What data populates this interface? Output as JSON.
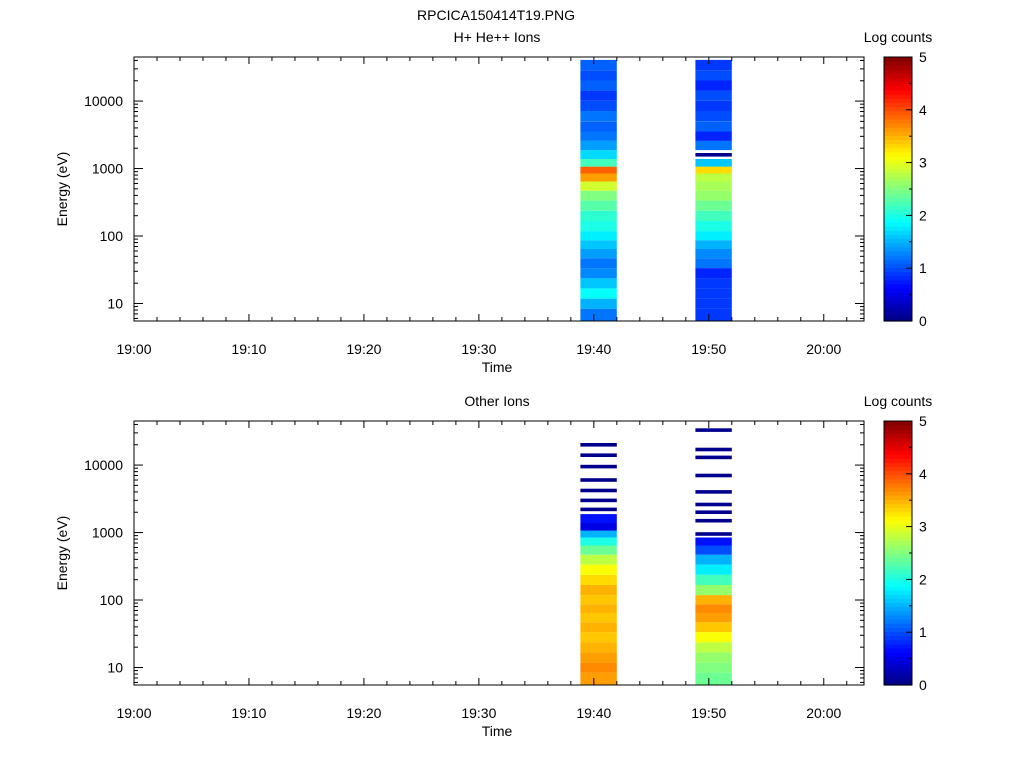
{
  "figure_title": "RPCICA150414T19.PNG",
  "chart_data": [
    {
      "type": "heatmap",
      "title": "H+ He++ Ions",
      "xlabel": "Time",
      "ylabel": "Energy (eV)",
      "x_ticks": [
        "19:00",
        "19:10",
        "19:20",
        "19:30",
        "19:40",
        "19:50",
        "20:00"
      ],
      "y_scale": "log",
      "ylim": [
        5.5,
        45000
      ],
      "y_ticks": [
        "10",
        "100",
        "1000",
        "10000"
      ],
      "colorbar": {
        "label": "Log counts",
        "range": [
          0,
          5
        ],
        "ticks": [
          "0",
          "1",
          "2",
          "3",
          "4",
          "5"
        ],
        "colormap": "jet"
      },
      "grid": false,
      "columns": [
        {
          "time_start": "19:38:50",
          "time_end": "19:42:00",
          "bins": [
            {
              "energy": 7,
              "value": 1.2
            },
            {
              "energy": 10,
              "value": 1.5
            },
            {
              "energy": 14,
              "value": 1.9
            },
            {
              "energy": 20,
              "value": 1.6
            },
            {
              "energy": 28,
              "value": 1.3
            },
            {
              "energy": 40,
              "value": 1.2
            },
            {
              "energy": 55,
              "value": 1.4
            },
            {
              "energy": 75,
              "value": 1.6
            },
            {
              "energy": 100,
              "value": 1.8
            },
            {
              "energy": 140,
              "value": 2.0
            },
            {
              "energy": 200,
              "value": 2.1
            },
            {
              "energy": 280,
              "value": 2.3
            },
            {
              "energy": 400,
              "value": 2.5
            },
            {
              "energy": 550,
              "value": 2.9
            },
            {
              "energy": 750,
              "value": 3.6
            },
            {
              "energy": 950,
              "value": 3.9
            },
            {
              "energy": 1200,
              "value": 2.2
            },
            {
              "energy": 1600,
              "value": 1.7
            },
            {
              "energy": 2200,
              "value": 1.4
            },
            {
              "energy": 3000,
              "value": 1.2
            },
            {
              "energy": 4200,
              "value": 1.1
            },
            {
              "energy": 6000,
              "value": 1.2
            },
            {
              "energy": 8500,
              "value": 1.0
            },
            {
              "energy": 12000,
              "value": 0.9
            },
            {
              "energy": 17000,
              "value": 1.1
            },
            {
              "energy": 24000,
              "value": 1.0
            },
            {
              "energy": 34000,
              "value": 1.1
            }
          ]
        },
        {
          "time_start": "19:48:50",
          "time_end": "19:52:00",
          "bins": [
            {
              "energy": 7,
              "value": 0.9
            },
            {
              "energy": 10,
              "value": 0.9
            },
            {
              "energy": 14,
              "value": 0.9
            },
            {
              "energy": 20,
              "value": 0.9
            },
            {
              "energy": 28,
              "value": 0.8
            },
            {
              "energy": 40,
              "value": 1.2
            },
            {
              "energy": 55,
              "value": 1.3
            },
            {
              "energy": 75,
              "value": 1.5
            },
            {
              "energy": 100,
              "value": 1.8
            },
            {
              "energy": 140,
              "value": 2.0
            },
            {
              "energy": 200,
              "value": 2.2
            },
            {
              "energy": 280,
              "value": 2.4
            },
            {
              "energy": 400,
              "value": 2.6
            },
            {
              "energy": 550,
              "value": 2.7
            },
            {
              "energy": 750,
              "value": 2.8
            },
            {
              "energy": 950,
              "value": 3.3
            },
            {
              "energy": 1200,
              "value": 1.6
            },
            {
              "energy": 1600,
              "value": 0.3
            },
            {
              "energy": 2200,
              "value": 1.2
            },
            {
              "energy": 3000,
              "value": 0.8
            },
            {
              "energy": 4200,
              "value": 1.1
            },
            {
              "energy": 6000,
              "value": 1.0
            },
            {
              "energy": 8500,
              "value": 0.9
            },
            {
              "energy": 12000,
              "value": 1.0
            },
            {
              "energy": 17000,
              "value": 0.8
            },
            {
              "energy": 24000,
              "value": 1.0
            },
            {
              "energy": 34000,
              "value": 0.9
            }
          ]
        }
      ]
    },
    {
      "type": "heatmap",
      "title": "Other Ions",
      "xlabel": "Time",
      "ylabel": "Energy (eV)",
      "x_ticks": [
        "19:00",
        "19:10",
        "19:20",
        "19:30",
        "19:40",
        "19:50",
        "20:00"
      ],
      "y_scale": "log",
      "ylim": [
        5.5,
        45000
      ],
      "y_ticks": [
        "10",
        "100",
        "1000",
        "10000"
      ],
      "colorbar": {
        "label": "Log counts",
        "range": [
          0,
          5
        ],
        "ticks": [
          "0",
          "1",
          "2",
          "3",
          "4",
          "5"
        ],
        "colormap": "jet"
      },
      "grid": false,
      "columns": [
        {
          "time_start": "19:38:50",
          "time_end": "19:42:00",
          "bins": [
            {
              "energy": 7,
              "value": 3.6
            },
            {
              "energy": 10,
              "value": 3.7
            },
            {
              "energy": 14,
              "value": 3.6
            },
            {
              "energy": 20,
              "value": 3.5
            },
            {
              "energy": 28,
              "value": 3.4
            },
            {
              "energy": 40,
              "value": 3.5
            },
            {
              "energy": 55,
              "value": 3.4
            },
            {
              "energy": 75,
              "value": 3.5
            },
            {
              "energy": 100,
              "value": 3.4
            },
            {
              "energy": 140,
              "value": 3.5
            },
            {
              "energy": 200,
              "value": 3.3
            },
            {
              "energy": 280,
              "value": 3.1
            },
            {
              "energy": 400,
              "value": 2.8
            },
            {
              "energy": 550,
              "value": 2.4
            },
            {
              "energy": 750,
              "value": 2.0
            },
            {
              "energy": 950,
              "value": 1.5
            },
            {
              "energy": 1200,
              "value": 0.5
            },
            {
              "energy": 1600,
              "value": 0.7
            },
            {
              "energy": 2200,
              "value": 0.3
            },
            {
              "energy": 3000,
              "value": 0.2
            },
            {
              "energy": 4200,
              "value": 0.2
            },
            {
              "energy": 6000,
              "value": 0.2
            },
            {
              "energy": 9500,
              "value": 0.2
            },
            {
              "energy": 14000,
              "value": 0.2
            },
            {
              "energy": 20000,
              "value": 0.2
            }
          ]
        },
        {
          "time_start": "19:48:50",
          "time_end": "19:52:00",
          "bins": [
            {
              "energy": 7,
              "value": 2.4
            },
            {
              "energy": 10,
              "value": 2.5
            },
            {
              "energy": 14,
              "value": 2.6
            },
            {
              "energy": 20,
              "value": 2.8
            },
            {
              "energy": 28,
              "value": 3.1
            },
            {
              "energy": 40,
              "value": 3.4
            },
            {
              "energy": 55,
              "value": 3.6
            },
            {
              "energy": 75,
              "value": 3.7
            },
            {
              "energy": 100,
              "value": 3.5
            },
            {
              "energy": 140,
              "value": 2.6
            },
            {
              "energy": 200,
              "value": 2.2
            },
            {
              "energy": 280,
              "value": 1.8
            },
            {
              "energy": 400,
              "value": 1.5
            },
            {
              "energy": 550,
              "value": 1.0
            },
            {
              "energy": 750,
              "value": 0.7
            },
            {
              "energy": 950,
              "value": 0.3
            },
            {
              "energy": 1500,
              "value": 0.2
            },
            {
              "energy": 2000,
              "value": 0.2
            },
            {
              "energy": 2600,
              "value": 0.2
            },
            {
              "energy": 4000,
              "value": 0.2
            },
            {
              "energy": 7000,
              "value": 0.2
            },
            {
              "energy": 13000,
              "value": 0.2
            },
            {
              "energy": 17000,
              "value": 0.2
            },
            {
              "energy": 33000,
              "value": 0.2
            }
          ]
        }
      ]
    }
  ]
}
